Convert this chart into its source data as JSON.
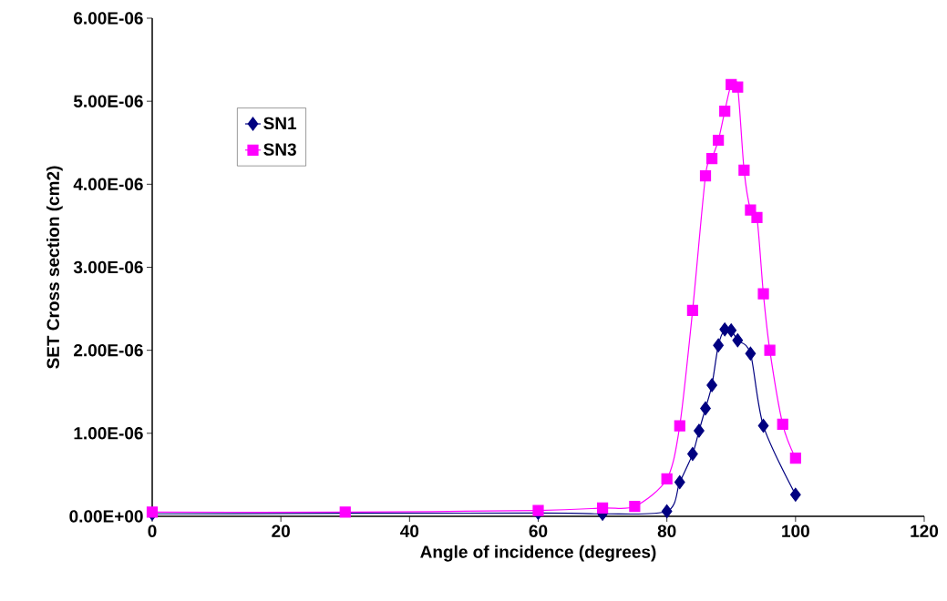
{
  "chart_data": {
    "type": "line",
    "xlabel": "Angle of incidence (degrees)",
    "ylabel": "SET Cross section (cm2)",
    "xlim": [
      0,
      120
    ],
    "xticks": [
      0,
      20,
      40,
      60,
      80,
      100,
      120
    ],
    "ylim": [
      0,
      6e-06
    ],
    "yticks": [
      {
        "value": 0,
        "label": "0.00E+00"
      },
      {
        "value": 1e-06,
        "label": "1.00E-06"
      },
      {
        "value": 2e-06,
        "label": "2.00E-06"
      },
      {
        "value": 3e-06,
        "label": "3.00E-06"
      },
      {
        "value": 4e-06,
        "label": "4.00E-06"
      },
      {
        "value": 5e-06,
        "label": "5.00E-06"
      },
      {
        "value": 6e-06,
        "label": "6.00E-06"
      }
    ],
    "grid": false,
    "legend": "top left",
    "series": [
      {
        "name": "SN1",
        "color": "#000080",
        "marker": "diamond",
        "x": [
          0,
          60,
          70,
          80,
          82,
          84,
          85,
          86,
          87,
          88,
          89,
          90,
          91,
          93,
          95,
          100
        ],
        "values": [
          3e-08,
          4e-08,
          3e-08,
          6e-08,
          4.1e-07,
          7.5e-07,
          1.03e-06,
          1.3e-06,
          1.58e-06,
          2.06e-06,
          2.25e-06,
          2.24e-06,
          2.12e-06,
          1.96e-06,
          1.09e-06,
          2.6e-07
        ]
      },
      {
        "name": "SN3",
        "color": "#ff00ff",
        "marker": "square",
        "x": [
          0,
          30,
          60,
          70,
          75,
          80,
          82,
          84,
          86,
          87,
          88,
          89,
          90,
          91,
          92,
          93,
          94,
          95,
          96,
          98,
          100
        ],
        "values": [
          5e-08,
          5e-08,
          7e-08,
          1e-07,
          1.2e-07,
          4.5e-07,
          1.09e-06,
          2.48e-06,
          4.1e-06,
          4.31e-06,
          4.53e-06,
          4.88e-06,
          5.2e-06,
          5.17e-06,
          4.17e-06,
          3.69e-06,
          3.6e-06,
          2.68e-06,
          2e-06,
          1.11e-06,
          7e-07
        ]
      }
    ]
  }
}
